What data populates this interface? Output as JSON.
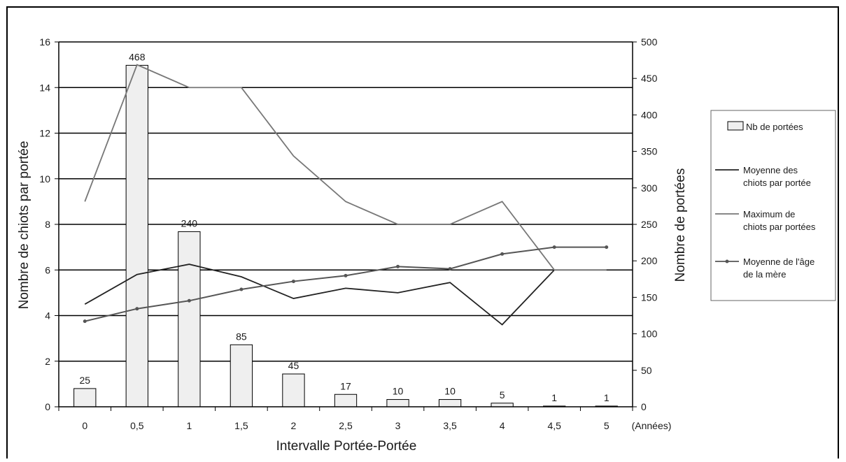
{
  "chart_data": {
    "type": "bar",
    "categories": [
      "0",
      "0,5",
      "1",
      "1,5",
      "2",
      "2,5",
      "3",
      "3,5",
      "4",
      "4,5",
      "5"
    ],
    "x_unit_label": "(Années)",
    "xlabel": "Intervalle Portée-Portée",
    "ylabel_left": "Nombre de chiots par portée",
    "ylabel_right": "Nombre de portées",
    "ylim_left": [
      0,
      16
    ],
    "ylim_right": [
      0,
      500
    ],
    "yticks_left": [
      "0",
      "2",
      "4",
      "6",
      "8",
      "10",
      "12",
      "14",
      "16"
    ],
    "yticks_right": [
      "0",
      "50",
      "100",
      "150",
      "200",
      "250",
      "300",
      "350",
      "400",
      "450",
      "500"
    ],
    "grid": true,
    "legend_position": "right",
    "series": [
      {
        "name": "Nb de portées",
        "type": "bar",
        "axis": "right",
        "color": "#efefef",
        "values": [
          25,
          468,
          240,
          85,
          45,
          17,
          10,
          10,
          5,
          1,
          1
        ],
        "labels": [
          "25",
          "468",
          "240",
          "85",
          "45",
          "17",
          "10",
          "10",
          "5",
          "1",
          "1"
        ]
      },
      {
        "name": "Moyenne des chiots par portée",
        "type": "line",
        "axis": "left",
        "color": "#222222",
        "values": [
          4.5,
          5.8,
          6.25,
          5.7,
          4.75,
          5.2,
          5.0,
          5.45,
          3.6,
          6.0,
          6.0
        ]
      },
      {
        "name": "Maximum de chiots par portées",
        "type": "line",
        "axis": "left",
        "color": "#777777",
        "values": [
          9,
          15,
          14,
          14,
          11,
          9,
          8,
          8,
          9,
          6,
          6
        ]
      },
      {
        "name": "Moyenne de l'âge de la mère",
        "type": "line",
        "axis": "left",
        "marker": true,
        "color": "#555555",
        "values": [
          3.75,
          4.3,
          4.65,
          5.15,
          5.5,
          5.75,
          6.15,
          6.05,
          6.7,
          7.0,
          7.0
        ]
      }
    ],
    "legend": [
      [
        "Nb de portées"
      ],
      [
        "Moyenne des",
        "chiots par portée"
      ],
      [
        "Maximum de",
        "chiots par portées"
      ],
      [
        "Moyenne de l'âge",
        "de la mère"
      ]
    ]
  }
}
